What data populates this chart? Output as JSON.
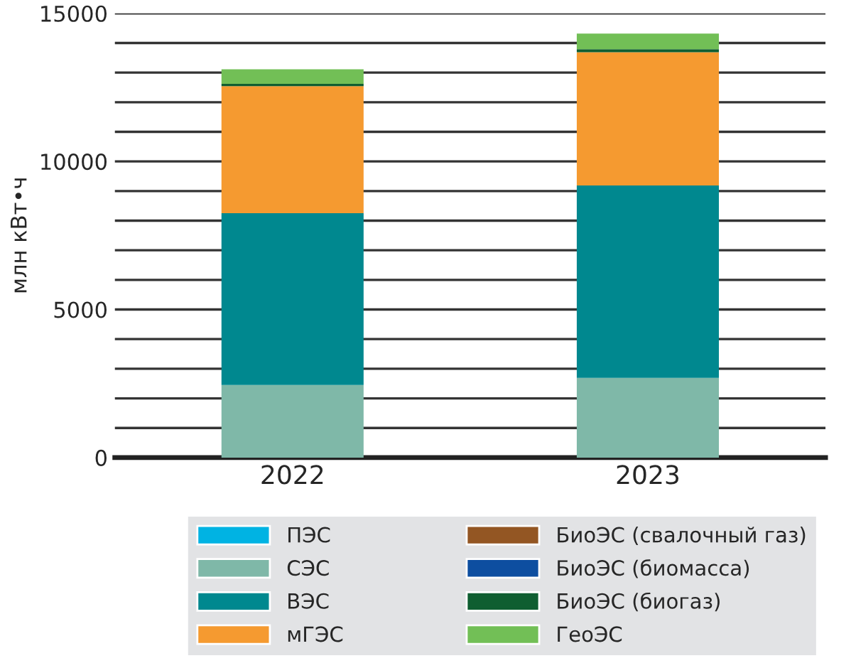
{
  "chart_data": {
    "type": "bar",
    "stacked": true,
    "ylabel": "млн кВт•ч",
    "categories": [
      "2022",
      "2023"
    ],
    "series": [
      {
        "name": "ПЭС",
        "color": "#00b3e3",
        "values": [
          null,
          null
        ]
      },
      {
        "name": "СЭС",
        "color": "#7fb8a8",
        "values": [
          2450,
          2690
        ]
      },
      {
        "name": "ВЭС",
        "color": "#00888f",
        "values": [
          5800,
          6500
        ]
      },
      {
        "name": "мГЭС",
        "color": "#f59a30",
        "values": [
          4290,
          4500
        ]
      },
      {
        "name": "БиоЭС (свалочный газ)",
        "color": "#935623",
        "values": [
          null,
          null
        ]
      },
      {
        "name": "БиоЭС (биомасса)",
        "color": "#0d4ea0",
        "values": [
          null,
          null
        ]
      },
      {
        "name": "БиоЭС (биогаз)",
        "color": "#0f5e31",
        "values": [
          80,
          100
        ]
      },
      {
        "name": "ГеоЭС",
        "color": "#72bf56",
        "values": [
          490,
          530
        ]
      }
    ],
    "ylim": [
      0,
      15000
    ],
    "yticks": [
      0,
      {
        "value": 1000,
        "label": null
      },
      {
        "value": 2000,
        "label": null
      },
      {
        "value": 3000,
        "label": null
      },
      {
        "value": 4000,
        "label": null
      },
      5000,
      {
        "value": 6000,
        "label": null
      },
      {
        "value": 7000,
        "label": null
      },
      {
        "value": 8000,
        "label": null
      },
      {
        "value": 9000,
        "label": null
      },
      10000,
      {
        "value": 11000,
        "label": null
      },
      {
        "value": 12000,
        "label": null
      },
      {
        "value": 13000,
        "label": null
      },
      {
        "value": 14000,
        "label": null
      },
      15000
    ],
    "grid": "y",
    "legend": "bottom"
  }
}
